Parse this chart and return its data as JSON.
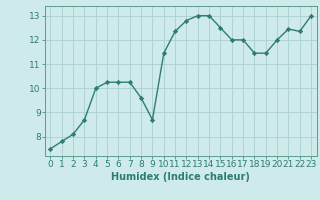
{
  "x": [
    0,
    1,
    2,
    3,
    4,
    5,
    6,
    7,
    8,
    9,
    10,
    11,
    12,
    13,
    14,
    15,
    16,
    17,
    18,
    19,
    20,
    21,
    22,
    23
  ],
  "y": [
    7.5,
    7.8,
    8.1,
    8.7,
    10.0,
    10.25,
    10.25,
    10.25,
    9.6,
    8.7,
    11.45,
    12.35,
    12.8,
    13.0,
    13.0,
    12.5,
    12.0,
    12.0,
    11.45,
    11.45,
    12.0,
    12.45,
    12.35,
    13.0
  ],
  "line_color": "#2e7d6e",
  "marker": "D",
  "marker_size": 2.2,
  "bg_color": "#ceeaea",
  "grid_color": "#aacece",
  "xlabel": "Humidex (Indice chaleur)",
  "ylim": [
    7.2,
    13.4
  ],
  "xlim": [
    -0.5,
    23.5
  ],
  "yticks": [
    8,
    9,
    10,
    11,
    12,
    13
  ],
  "xticks": [
    0,
    1,
    2,
    3,
    4,
    5,
    6,
    7,
    8,
    9,
    10,
    11,
    12,
    13,
    14,
    15,
    16,
    17,
    18,
    19,
    20,
    21,
    22,
    23
  ],
  "xlabel_fontsize": 7,
  "tick_fontsize": 6.5,
  "label_color": "#2e7d6e",
  "spine_color": "#5a9e8e",
  "linewidth": 1.0
}
